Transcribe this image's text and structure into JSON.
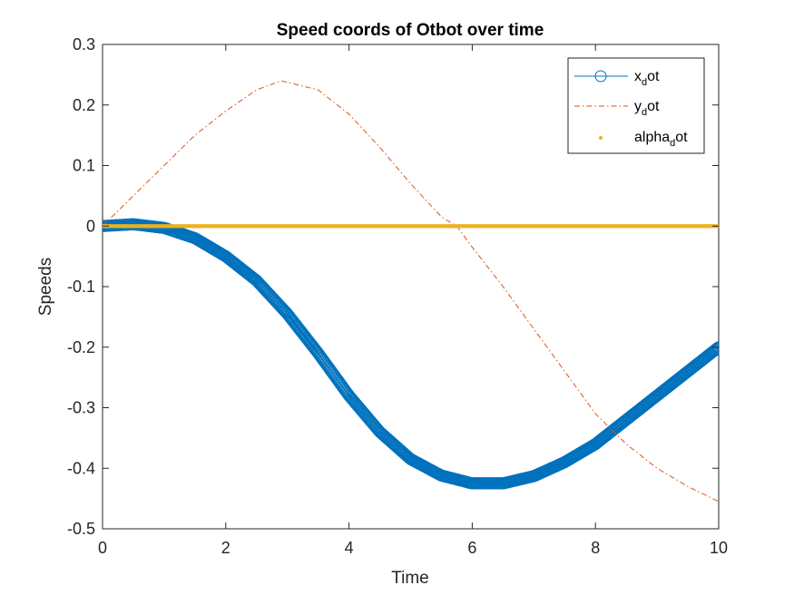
{
  "chart_data": {
    "type": "line",
    "title": "Speed coords of Otbot over time",
    "xlabel": "Time",
    "ylabel": "Speeds",
    "xlim": [
      0,
      10
    ],
    "ylim": [
      -0.5,
      0.3
    ],
    "xticks": [
      0,
      2,
      4,
      6,
      8,
      10
    ],
    "xtick_labels": [
      "0",
      "2",
      "4",
      "6",
      "8",
      "10"
    ],
    "yticks": [
      0.3,
      0.2,
      0.1,
      0,
      -0.1,
      -0.2,
      -0.3,
      -0.4,
      -0.5
    ],
    "ytick_labels": [
      "0.3",
      "0.2",
      "0.1",
      "0",
      "-0.1",
      "-0.2",
      "-0.3",
      "-0.4",
      "-0.5"
    ],
    "grid": false,
    "legend_position": "top-right",
    "series": [
      {
        "legend_main": "x",
        "legend_sub": "d",
        "legend_rest": "ot",
        "color": "#0072BD",
        "style": "solid-circle-markers",
        "x": [
          0,
          0.5,
          1.0,
          1.5,
          2.0,
          2.5,
          3.0,
          3.5,
          4.0,
          4.5,
          5.0,
          5.5,
          6.0,
          6.5,
          7.0,
          7.5,
          8.0,
          8.5,
          9.0,
          9.5,
          10.0
        ],
        "y": [
          0,
          0.003,
          -0.003,
          -0.02,
          -0.05,
          -0.09,
          -0.145,
          -0.21,
          -0.28,
          -0.34,
          -0.385,
          -0.412,
          -0.425,
          -0.425,
          -0.413,
          -0.39,
          -0.36,
          -0.32,
          -0.28,
          -0.24,
          -0.2
        ]
      },
      {
        "legend_main": "y",
        "legend_sub": "d",
        "legend_rest": "ot",
        "color": "#D95319",
        "style": "dash-dot",
        "x": [
          0,
          0.5,
          1.0,
          1.5,
          2.0,
          2.5,
          2.9,
          3.5,
          4.0,
          4.5,
          5.0,
          5.5,
          5.75,
          6.0,
          6.5,
          7.0,
          7.5,
          8.0,
          8.5,
          9.0,
          9.5,
          10.0
        ],
        "y": [
          0,
          0.05,
          0.1,
          0.15,
          0.19,
          0.225,
          0.24,
          0.225,
          0.185,
          0.13,
          0.07,
          0.015,
          0,
          -0.035,
          -0.1,
          -0.17,
          -0.24,
          -0.31,
          -0.36,
          -0.4,
          -0.43,
          -0.455
        ]
      },
      {
        "legend_main": "alpha",
        "legend_sub": "d",
        "legend_rest": "ot",
        "color": "#EDB120",
        "style": "dots",
        "x": [
          0,
          10
        ],
        "y": [
          0,
          0
        ]
      }
    ]
  }
}
